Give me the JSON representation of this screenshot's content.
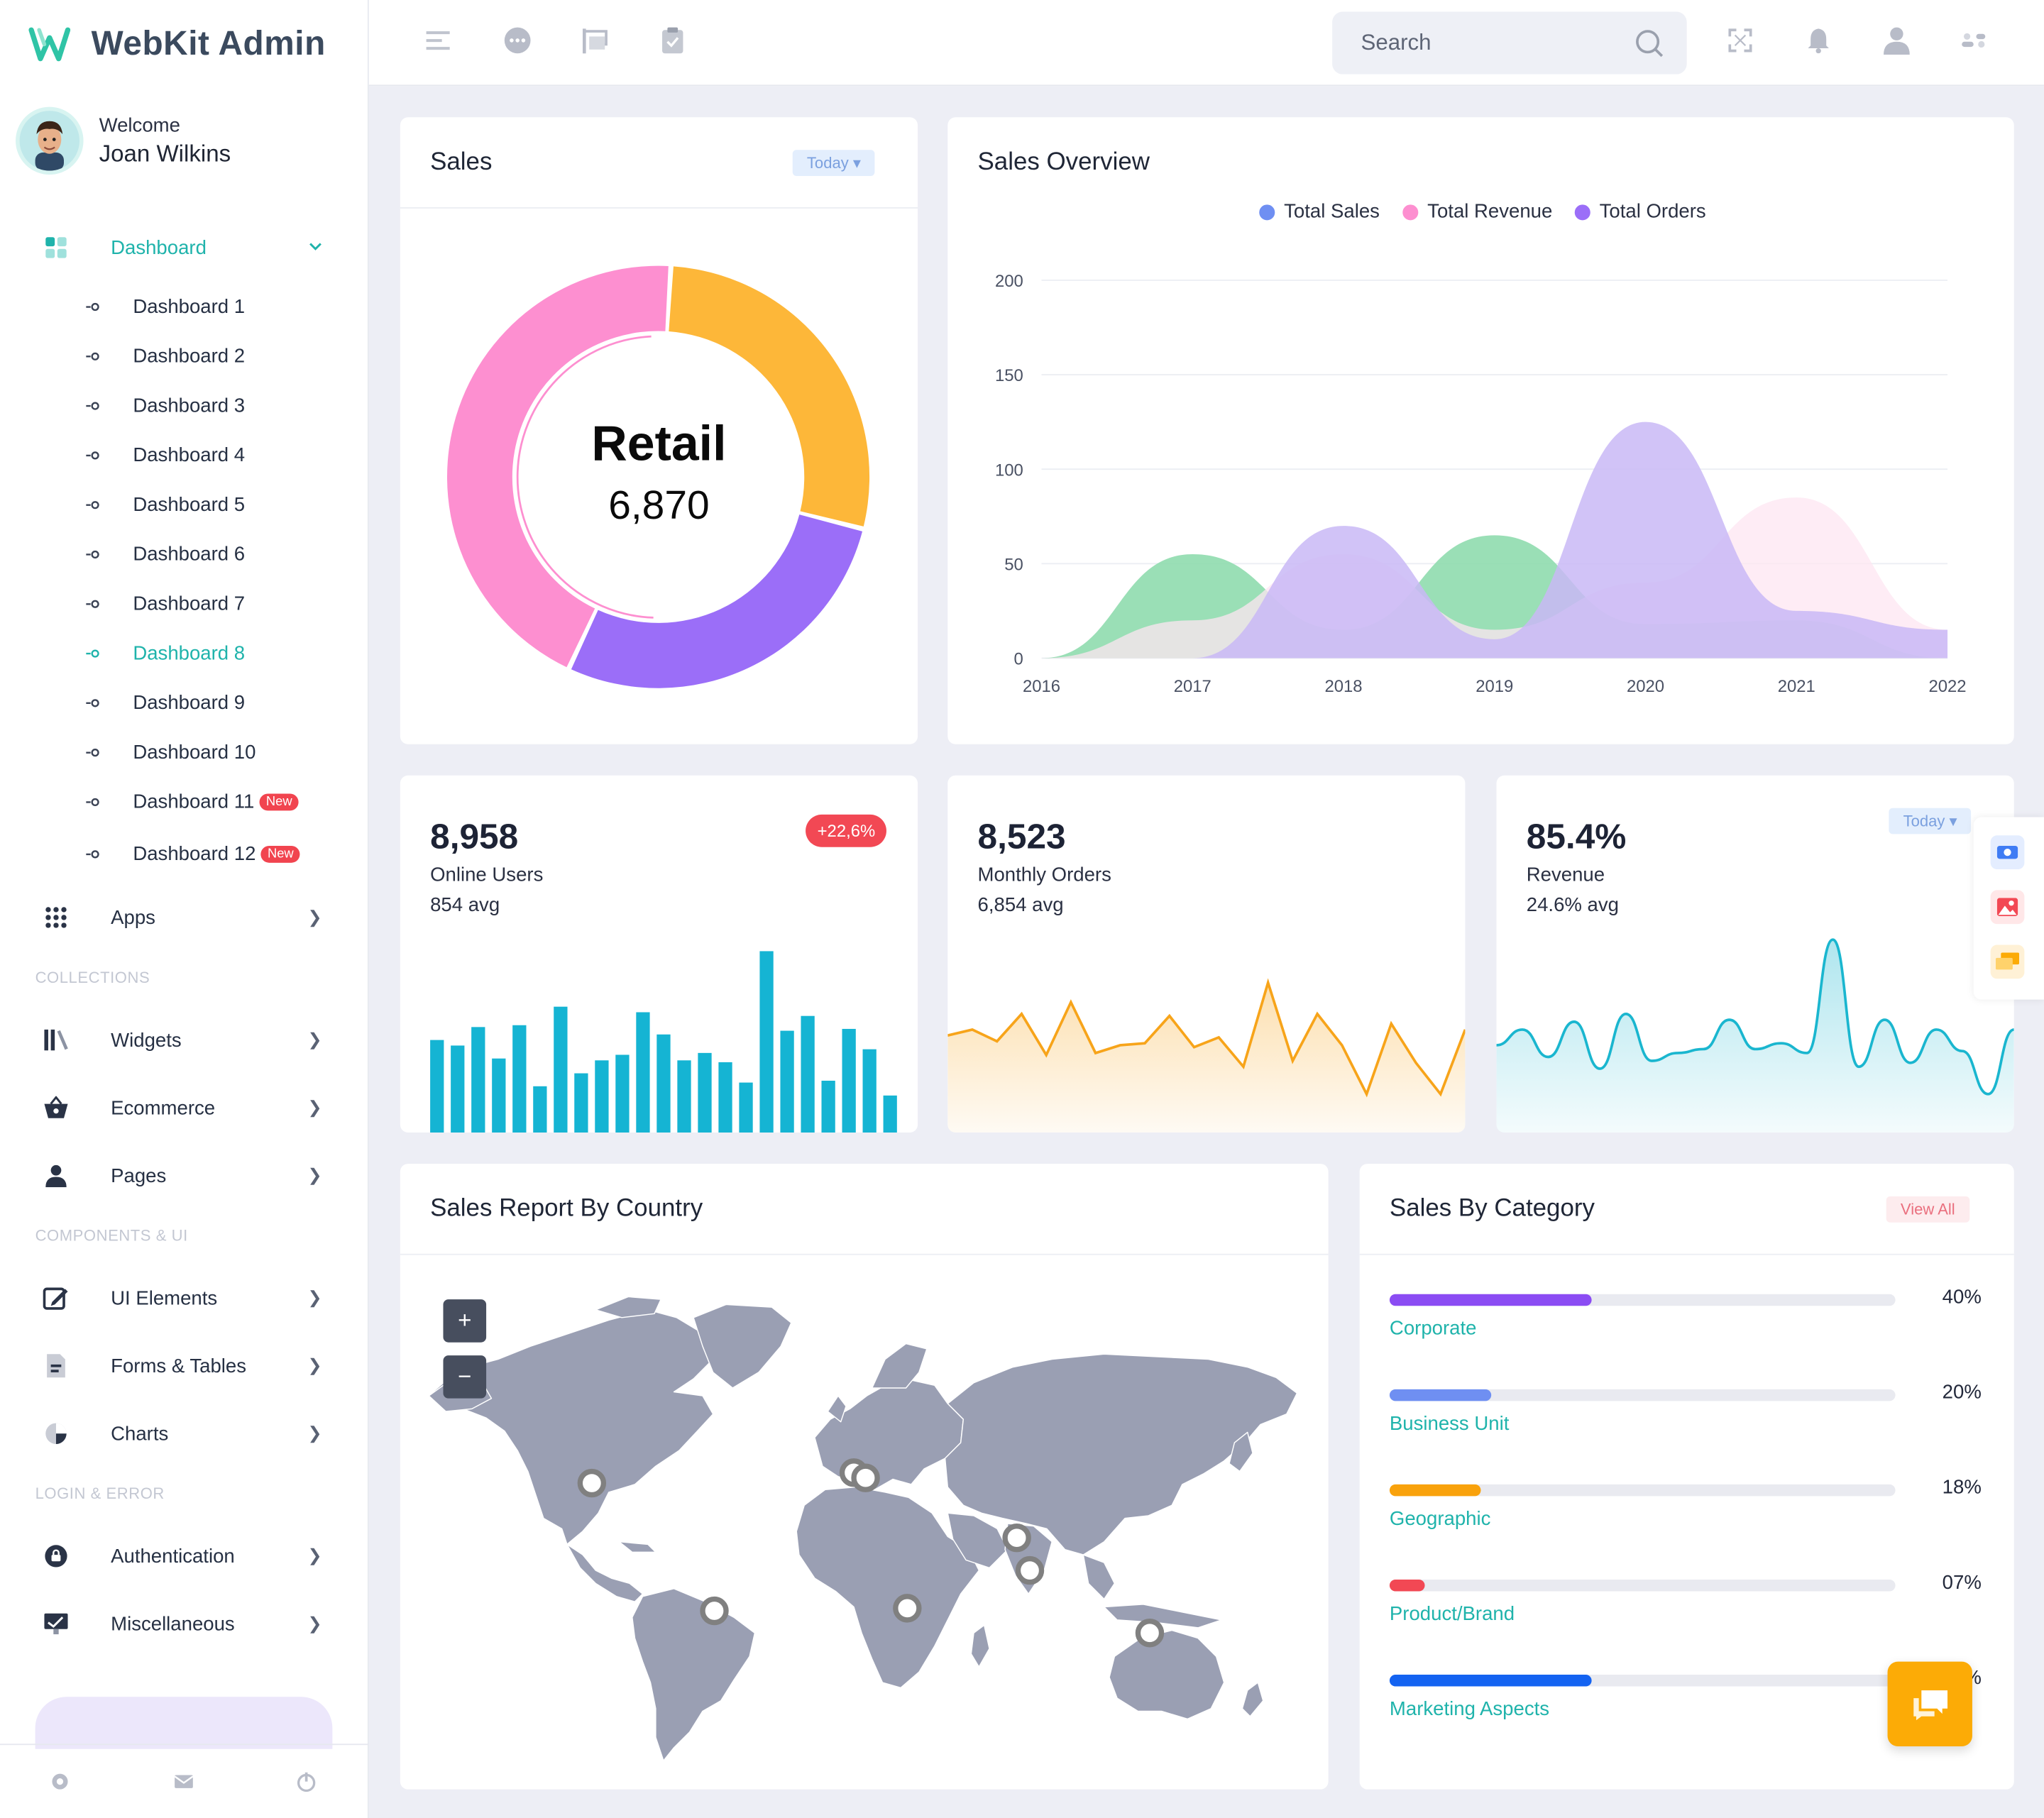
{
  "app": {
    "name": "WebKit Admin"
  },
  "user": {
    "welcome": "Welcome",
    "name": "Joan Wilkins"
  },
  "sidebar": {
    "dashboard_label": "Dashboard",
    "dashboards": [
      {
        "label": "Dashboard 1",
        "badge": ""
      },
      {
        "label": "Dashboard 2",
        "badge": ""
      },
      {
        "label": "Dashboard 3",
        "badge": ""
      },
      {
        "label": "Dashboard 4",
        "badge": ""
      },
      {
        "label": "Dashboard 5",
        "badge": ""
      },
      {
        "label": "Dashboard 6",
        "badge": ""
      },
      {
        "label": "Dashboard 7",
        "badge": ""
      },
      {
        "label": "Dashboard 8",
        "badge": ""
      },
      {
        "label": "Dashboard 9",
        "badge": ""
      },
      {
        "label": "Dashboard 10",
        "badge": ""
      },
      {
        "label": "Dashboard 11",
        "badge": "New"
      },
      {
        "label": "Dashboard 12",
        "badge": "New"
      }
    ],
    "active_dashboard": "Dashboard 8",
    "apps_label": "Apps",
    "sections": {
      "collections": "COLLECTIONS",
      "components": "COMPONENTS & UI",
      "login": "LOGIN & ERROR"
    },
    "items": {
      "widgets": "Widgets",
      "ecommerce": "Ecommerce",
      "pages": "Pages",
      "ui_elements": "UI Elements",
      "forms_tables": "Forms & Tables",
      "charts": "Charts",
      "authentication": "Authentication",
      "miscellaneous": "Miscellaneous"
    }
  },
  "search": {
    "placeholder": "Search"
  },
  "accent": "#1fb3ab",
  "sales_card": {
    "title": "Sales",
    "filter": "Today",
    "center_label": "Retail",
    "center_value": "6,870"
  },
  "overview_card": {
    "title": "Sales Overview"
  },
  "stats": [
    {
      "value": "8,958",
      "label": "Online Users",
      "avg": "854 avg",
      "badge": "+22,6%",
      "color": "#15b4d3"
    },
    {
      "value": "8,523",
      "label": "Monthly Orders",
      "avg": "6,854 avg",
      "color": "#f7a41a"
    },
    {
      "value": "85.4%",
      "label": "Revenue",
      "avg": "24.6% avg",
      "filter": "Today",
      "color": "#1ab6cf"
    }
  ],
  "country_card": {
    "title": "Sales Report By Country"
  },
  "category_card": {
    "title": "Sales By Category",
    "action": "View All",
    "items": [
      {
        "name": "Corporate",
        "percent": "40%",
        "value": 40,
        "color": "#8b4cf3"
      },
      {
        "name": "Business Unit",
        "percent": "20%",
        "value": 20,
        "color": "#6f8ff2"
      },
      {
        "name": "Geographic",
        "percent": "18%",
        "value": 18,
        "color": "#f9a20c"
      },
      {
        "name": "Product/Brand",
        "percent": "07%",
        "value": 7,
        "color": "#f24854"
      },
      {
        "name": "Marketing Aspects",
        "percent": "40%",
        "value": 40,
        "color": "#1463f1"
      }
    ]
  },
  "chart_data": [
    {
      "type": "pie",
      "variant": "donut",
      "values": [
        28,
        28,
        44
      ],
      "colors": [
        "#fdb739",
        "#9b6ef8",
        "#fd8fd0"
      ]
    },
    {
      "type": "area",
      "x": [
        2016,
        2017,
        2018,
        2019,
        2020,
        2021,
        2022
      ],
      "ylim": [
        0,
        200
      ],
      "yticks": [
        0,
        50,
        100,
        150,
        200
      ],
      "series": [
        {
          "name": "Total Sales",
          "color": "#6f8ff2",
          "fill": "#8fdcae",
          "values": [
            0,
            55,
            15,
            65,
            18,
            20,
            0
          ]
        },
        {
          "name": "Total Revenue",
          "color": "#fd8fd0",
          "fill": "#fde6f2",
          "values": [
            0,
            20,
            55,
            15,
            40,
            85,
            15
          ]
        },
        {
          "name": "Total Orders",
          "color": "#9b6ef8",
          "fill": "#c9b9f6",
          "values": [
            0,
            0,
            70,
            10,
            125,
            25,
            15
          ]
        }
      ],
      "grid": true,
      "legend": "top-center"
    },
    {
      "type": "bar",
      "values": [
        50,
        47,
        57,
        40,
        58,
        25,
        68,
        32,
        39,
        42,
        65,
        53,
        39,
        43,
        38,
        27,
        98,
        55,
        63,
        28,
        56,
        45,
        20
      ]
    },
    {
      "type": "line",
      "values": [
        47,
        50,
        44,
        58,
        37,
        64,
        38,
        42,
        43,
        57,
        41,
        46,
        31,
        74,
        34,
        58,
        42,
        17,
        53,
        33,
        17,
        50
      ]
    },
    {
      "type": "line",
      "values": [
        42,
        50,
        36,
        54,
        30,
        58,
        34,
        38,
        40,
        55,
        40,
        43,
        38,
        96,
        31,
        55,
        33,
        50,
        39,
        17,
        50
      ]
    }
  ]
}
